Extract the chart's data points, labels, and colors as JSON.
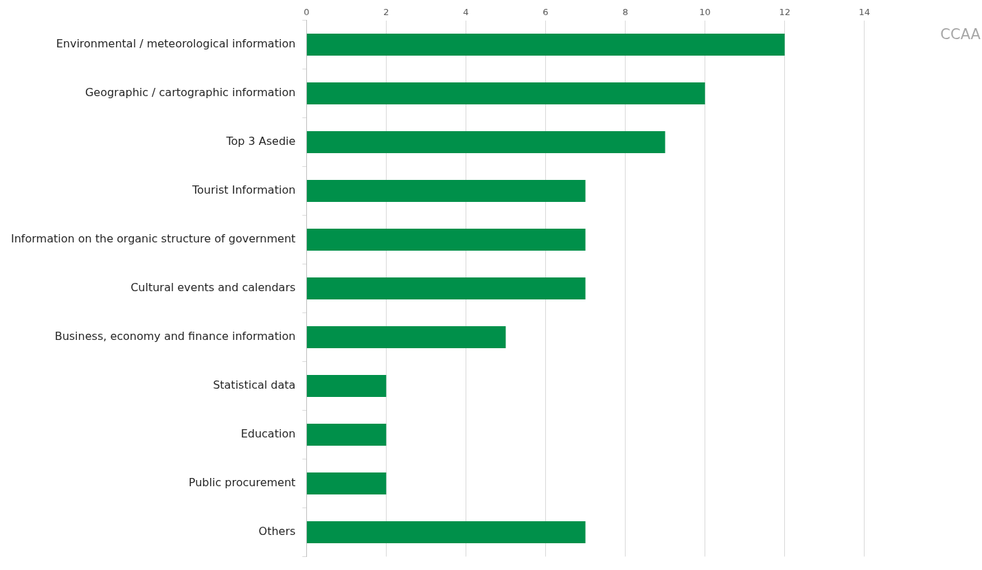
{
  "chart_data": {
    "type": "bar",
    "orientation": "horizontal",
    "title": "CCAA",
    "categories": [
      "Environmental / meteorological information",
      "Geographic / cartographic information",
      "Top 3 Asedie",
      "Tourist Information",
      "Information on the organic structure of government",
      "Cultural events and calendars",
      "Business, economy and finance information",
      "Statistical data",
      "Education",
      "Public procurement",
      "Others"
    ],
    "values": [
      12,
      10,
      9,
      7,
      7,
      7,
      5,
      2,
      2,
      2,
      7
    ],
    "color": "#00904a",
    "xlim": [
      0,
      14
    ],
    "xticks": [
      0,
      2,
      4,
      6,
      8,
      10,
      12,
      14
    ],
    "grid": "x",
    "legend": false
  }
}
